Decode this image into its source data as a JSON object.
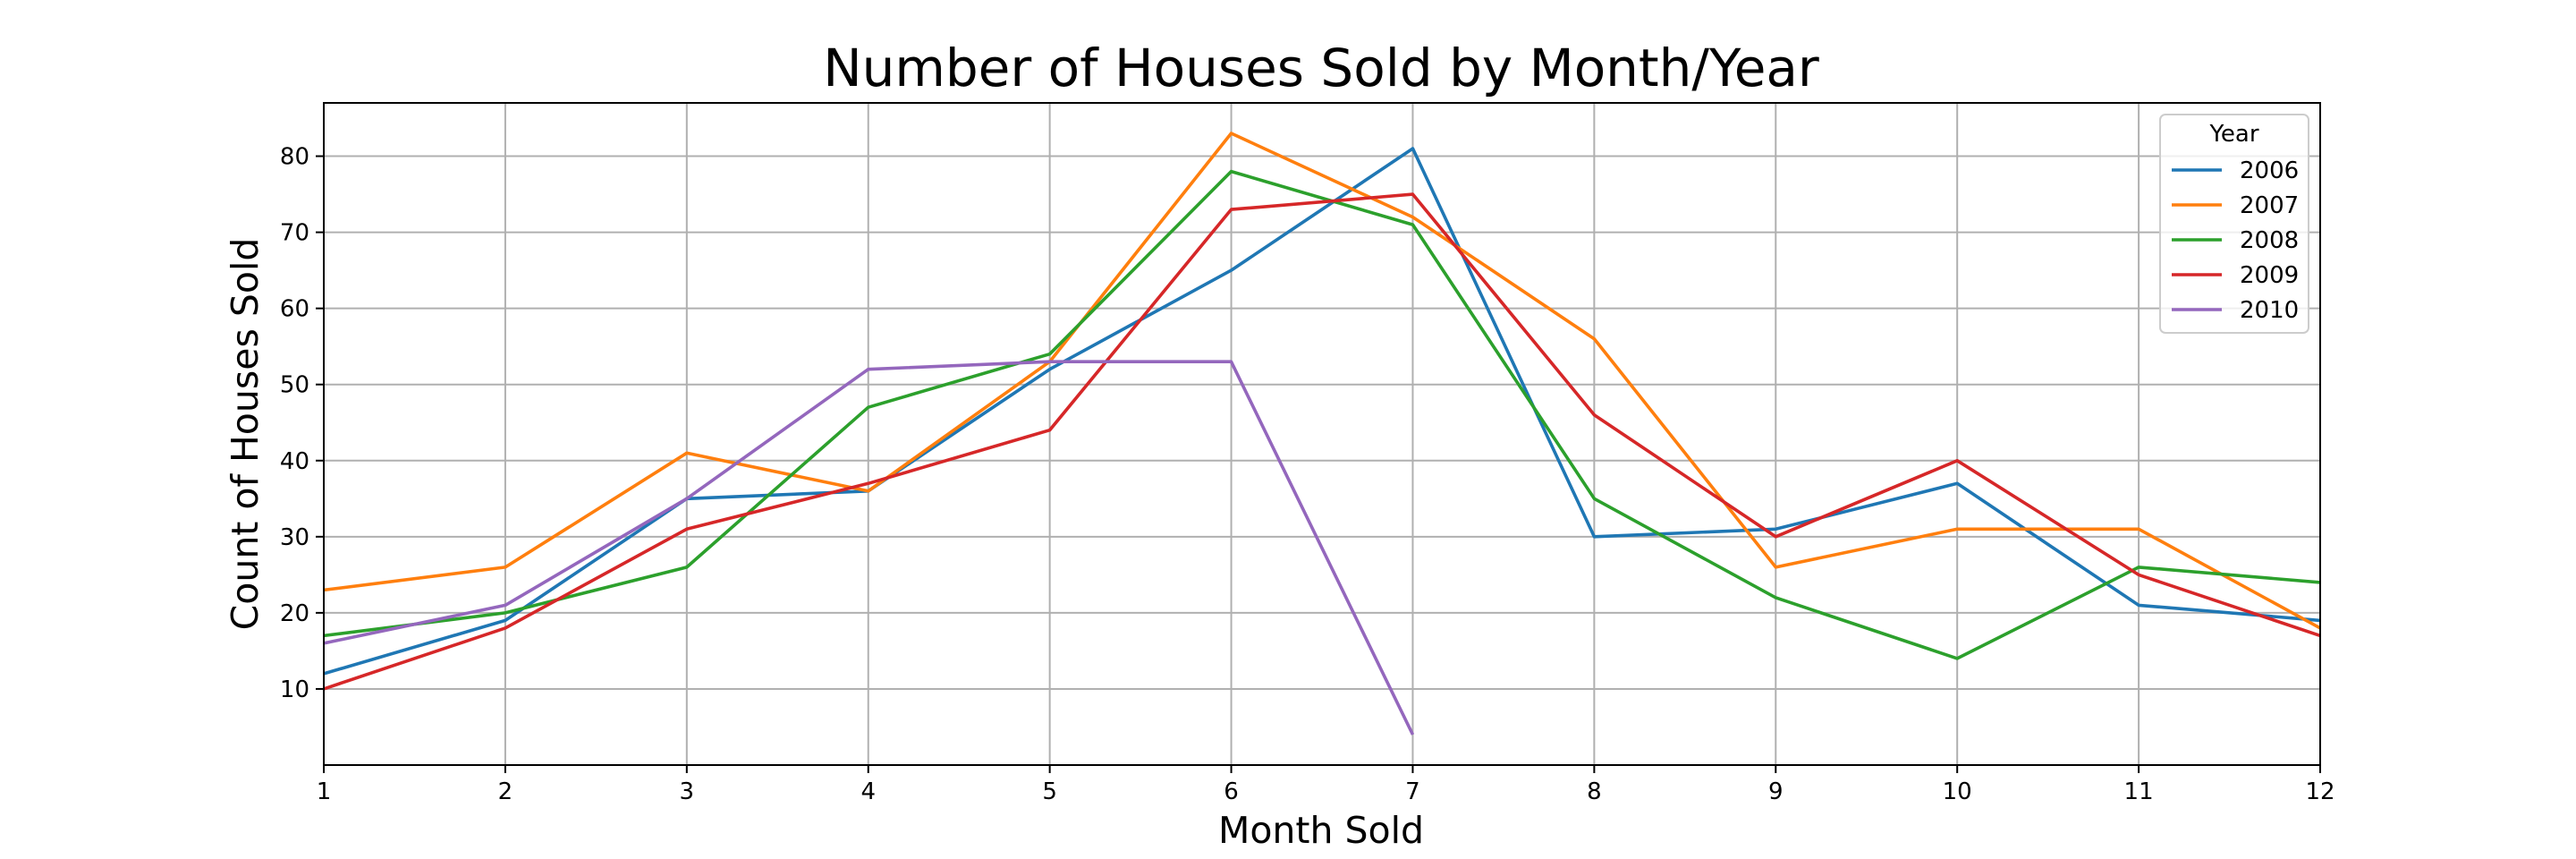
{
  "chart_data": {
    "type": "line",
    "title": "Number of Houses Sold by Month/Year",
    "xlabel": "Month Sold",
    "ylabel": "Count of Houses Sold",
    "x": [
      1,
      2,
      3,
      4,
      5,
      6,
      7,
      8,
      9,
      10,
      11,
      12
    ],
    "xlim": [
      1,
      12
    ],
    "ylim": [
      0,
      87
    ],
    "yticks": [
      10,
      20,
      30,
      40,
      50,
      60,
      70,
      80
    ],
    "grid": true,
    "legend": {
      "title": "Year",
      "placement": "top-right"
    },
    "series": [
      {
        "name": "2006",
        "color": "#1f77b4",
        "x": [
          1,
          2,
          3,
          4,
          5,
          6,
          7,
          8,
          9,
          10,
          11,
          12
        ],
        "values": [
          12,
          19,
          35,
          36,
          52,
          65,
          81,
          30,
          31,
          37,
          21,
          19
        ]
      },
      {
        "name": "2007",
        "color": "#ff7f0e",
        "x": [
          1,
          2,
          3,
          4,
          5,
          6,
          7,
          8,
          9,
          10,
          11,
          12
        ],
        "values": [
          23,
          26,
          41,
          36,
          53,
          83,
          72,
          56,
          26,
          31,
          31,
          18
        ]
      },
      {
        "name": "2008",
        "color": "#2ca02c",
        "x": [
          1,
          2,
          3,
          4,
          5,
          6,
          7,
          8,
          9,
          10,
          11,
          12
        ],
        "values": [
          17,
          20,
          26,
          47,
          54,
          78,
          71,
          35,
          22,
          14,
          26,
          24
        ]
      },
      {
        "name": "2009",
        "color": "#d62728",
        "x": [
          1,
          2,
          3,
          4,
          5,
          6,
          7,
          8,
          9,
          10,
          11,
          12
        ],
        "values": [
          10,
          18,
          31,
          37,
          44,
          73,
          75,
          46,
          30,
          40,
          25,
          17
        ]
      },
      {
        "name": "2010",
        "color": "#9467bd",
        "x": [
          1,
          2,
          3,
          4,
          5,
          6,
          7
        ],
        "values": [
          16,
          21,
          35,
          52,
          53,
          53,
          4
        ]
      }
    ]
  }
}
